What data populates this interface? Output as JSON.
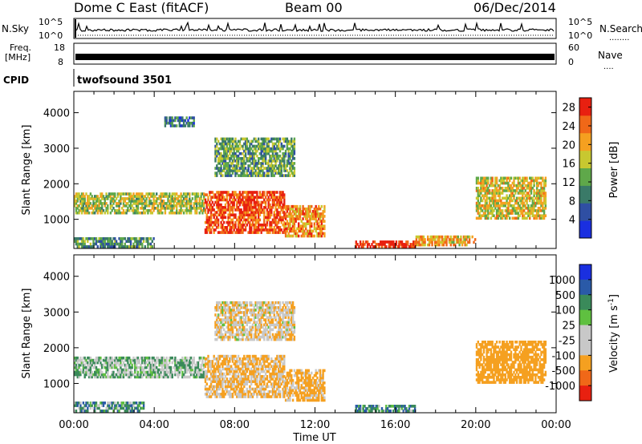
{
  "header": {
    "title": "Dome C East (fitACF)",
    "beam": "Beam 00",
    "date": "06/Dec/2014"
  },
  "summary_panels": {
    "nsky_label": "N.Sky",
    "nsearch_label": "N.Search",
    "nsearch_line": "........",
    "freq_label": "Freq.",
    "freq_unit": "[MHz]",
    "nave_label": "Nave",
    "nave_line": "....",
    "cpid_label": "CPID",
    "cpid_value": "twofsound 3501",
    "noise_left_ticks": [
      "10^5",
      "10^0"
    ],
    "noise_right_ticks": [
      "10^5",
      "10^0"
    ],
    "freq_ticks": [
      "18",
      "8"
    ],
    "nave_ticks": [
      "60",
      "0"
    ]
  },
  "colors": {
    "power_scale": [
      "#1a2fe0",
      "#2f4fa3",
      "#3a7a68",
      "#5fa84a",
      "#c8c830",
      "#f5a020",
      "#f06818",
      "#e82010"
    ],
    "velocity_scale": [
      "#e82010",
      "#f06818",
      "#f5a020",
      "#c8c8c8",
      "#c8c8c8",
      "#5fc040",
      "#3a8a5a",
      "#2a5aa8",
      "#1a2fe0"
    ]
  },
  "chart_data": [
    {
      "type": "heatmap",
      "title": "",
      "xlabel": "",
      "ylabel": "Slant Range [km]",
      "xlim_hours": [
        0,
        24
      ],
      "ylim": [
        180,
        4600
      ],
      "xticks": [
        "00:00",
        "04:00",
        "08:00",
        "12:00",
        "16:00",
        "20:00",
        "00:00"
      ],
      "yticks": [
        1000,
        2000,
        3000,
        4000
      ],
      "colorbar": {
        "label": "Power [dB]",
        "ticks": [
          4,
          8,
          12,
          16,
          20,
          24,
          28
        ],
        "range": [
          0,
          30
        ]
      },
      "echo_regions": [
        {
          "t": [
            0.0,
            6.5
          ],
          "r": [
            1150,
            1750
          ],
          "value": 16
        },
        {
          "t": [
            6.5,
            10.5
          ],
          "r": [
            600,
            1800
          ],
          "value": 26
        },
        {
          "t": [
            10.5,
            12.5
          ],
          "r": [
            500,
            1400
          ],
          "value": 22
        },
        {
          "t": [
            14.0,
            17.0
          ],
          "r": [
            200,
            400
          ],
          "value": 29
        },
        {
          "t": [
            17.0,
            20.0
          ],
          "r": [
            250,
            550
          ],
          "value": 20
        },
        {
          "t": [
            20.0,
            23.5
          ],
          "r": [
            1000,
            2200
          ],
          "value": 18
        },
        {
          "t": [
            0.0,
            4.0
          ],
          "r": [
            200,
            500
          ],
          "value": 10
        },
        {
          "t": [
            7.0,
            11.0
          ],
          "r": [
            2200,
            3300
          ],
          "value": 12
        },
        {
          "t": [
            4.5,
            6.0
          ],
          "r": [
            3600,
            3900
          ],
          "value": 8
        }
      ]
    },
    {
      "type": "heatmap",
      "title": "",
      "xlabel": "Time UT",
      "ylabel": "Slant Range [km]",
      "xlim_hours": [
        0,
        24
      ],
      "ylim": [
        180,
        4600
      ],
      "xticks": [
        "00:00",
        "04:00",
        "08:00",
        "12:00",
        "16:00",
        "20:00",
        "00:00"
      ],
      "yticks": [
        1000,
        2000,
        3000,
        4000
      ],
      "colorbar": {
        "label": "Velocity [m s^-1]",
        "ticks": [
          "1000",
          "500",
          "100",
          "25",
          "-25",
          "-100",
          "-500",
          "-1000"
        ]
      },
      "echo_regions": [
        {
          "t": [
            0.0,
            6.5
          ],
          "r": [
            1150,
            1750
          ],
          "value": 0
        },
        {
          "t": [
            6.5,
            10.5
          ],
          "r": [
            600,
            1800
          ],
          "value": -120
        },
        {
          "t": [
            10.5,
            12.5
          ],
          "r": [
            500,
            1400
          ],
          "value": -150
        },
        {
          "t": [
            14.0,
            17.0
          ],
          "r": [
            200,
            400
          ],
          "value": 80
        },
        {
          "t": [
            0.0,
            3.5
          ],
          "r": [
            200,
            500
          ],
          "value": 60
        },
        {
          "t": [
            20.0,
            23.5
          ],
          "r": [
            1000,
            2200
          ],
          "value": -200
        },
        {
          "t": [
            7.0,
            11.0
          ],
          "r": [
            2200,
            3300
          ],
          "value": -80
        }
      ]
    }
  ]
}
